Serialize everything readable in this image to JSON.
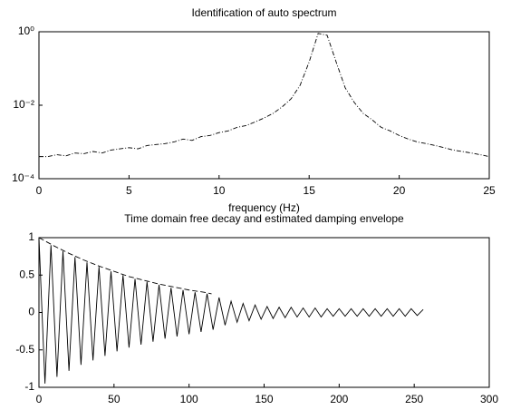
{
  "chart_data": [
    {
      "type": "line",
      "title": "Identification of auto spectrum",
      "x_label": "frequency (Hz)",
      "xlim": [
        0,
        25
      ],
      "xticks": [
        0,
        5,
        10,
        15,
        20,
        25
      ],
      "y_scale": "log",
      "ylim": [
        0.0001,
        1
      ],
      "yticks": [
        {
          "value": 0.0001,
          "label": "10⁻⁴"
        },
        {
          "value": 0.01,
          "label": "10⁻²"
        },
        {
          "value": 1,
          "label": "10⁰"
        }
      ],
      "series": [
        {
          "color": "#000000",
          "linestyle": "dashdot",
          "x": [
            0,
            0.5,
            1,
            1.5,
            2,
            2.5,
            3,
            3.5,
            4,
            4.5,
            5,
            5.5,
            6,
            6.5,
            7,
            7.5,
            8,
            8.5,
            9,
            9.5,
            10,
            10.5,
            11,
            11.5,
            12,
            12.5,
            13,
            13.5,
            14,
            14.5,
            15,
            15.5,
            16,
            16.5,
            17,
            17.5,
            18,
            18.5,
            19,
            19.5,
            20,
            20.5,
            21,
            21.5,
            22,
            22.5,
            23,
            23.5,
            24,
            24.5,
            25
          ],
          "values": [
            0.0004,
            0.0004,
            0.00045,
            0.00042,
            0.0005,
            0.00048,
            0.00055,
            0.0005,
            0.0006,
            0.00065,
            0.0007,
            0.00065,
            0.0008,
            0.00085,
            0.0009,
            0.001,
            0.0012,
            0.0011,
            0.0014,
            0.0015,
            0.0018,
            0.002,
            0.0025,
            0.0028,
            0.0035,
            0.0045,
            0.006,
            0.009,
            0.015,
            0.035,
            0.15,
            0.9,
            0.8,
            0.15,
            0.03,
            0.012,
            0.006,
            0.004,
            0.0025,
            0.002,
            0.0015,
            0.0012,
            0.001,
            0.0009,
            0.0008,
            0.0007,
            0.0006,
            0.00055,
            0.0005,
            0.00045,
            0.0004
          ]
        }
      ]
    },
    {
      "type": "line",
      "title": "Time domain free decay and estimated damping envelope",
      "xlim": [
        0,
        300
      ],
      "xticks": [
        0,
        50,
        100,
        150,
        200,
        250,
        300
      ],
      "ylim": [
        -1,
        1
      ],
      "yticks": [
        -1,
        -0.5,
        0,
        0.5,
        1
      ],
      "series": [
        {
          "color": "#000000",
          "linestyle": "solid",
          "x": [
            0,
            4,
            8,
            12,
            16,
            20,
            24,
            28,
            32,
            36,
            40,
            44,
            48,
            52,
            56,
            60,
            64,
            68,
            72,
            76,
            80,
            84,
            88,
            92,
            96,
            100,
            104,
            108,
            112,
            116,
            120,
            124,
            128,
            132,
            136,
            140,
            144,
            148,
            152,
            156,
            160,
            164,
            168,
            172,
            176,
            180,
            184,
            188,
            192,
            196,
            200,
            204,
            208,
            212,
            216,
            220,
            224,
            228,
            232,
            236,
            240,
            244,
            248,
            252,
            256
          ],
          "values": [
            1,
            -0.95,
            0.9,
            -0.86,
            0.82,
            -0.78,
            0.74,
            -0.7,
            0.67,
            -0.64,
            0.61,
            -0.58,
            0.55,
            -0.52,
            0.5,
            -0.47,
            0.45,
            -0.43,
            0.41,
            -0.39,
            0.37,
            -0.35,
            0.33,
            -0.32,
            0.3,
            -0.29,
            0.27,
            -0.26,
            0.25,
            -0.23,
            0.2,
            -0.17,
            0.15,
            -0.13,
            0.12,
            -0.11,
            0.1,
            -0.09,
            0.08,
            -0.08,
            0.07,
            -0.07,
            0.07,
            -0.06,
            0.06,
            -0.06,
            0.06,
            -0.06,
            0.05,
            -0.05,
            0.05,
            -0.05,
            0.05,
            -0.05,
            0.05,
            -0.05,
            0.05,
            -0.05,
            0.05,
            -0.05,
            0.05,
            -0.05,
            0.05,
            -0.04,
            0.04
          ]
        },
        {
          "color": "#000000",
          "linestyle": "dashed",
          "x": [
            0,
            10,
            20,
            30,
            40,
            50,
            60,
            70,
            80,
            90,
            100,
            110,
            115
          ],
          "values": [
            1,
            0.89,
            0.79,
            0.7,
            0.62,
            0.55,
            0.48,
            0.43,
            0.38,
            0.34,
            0.3,
            0.27,
            0.25
          ]
        }
      ]
    }
  ]
}
